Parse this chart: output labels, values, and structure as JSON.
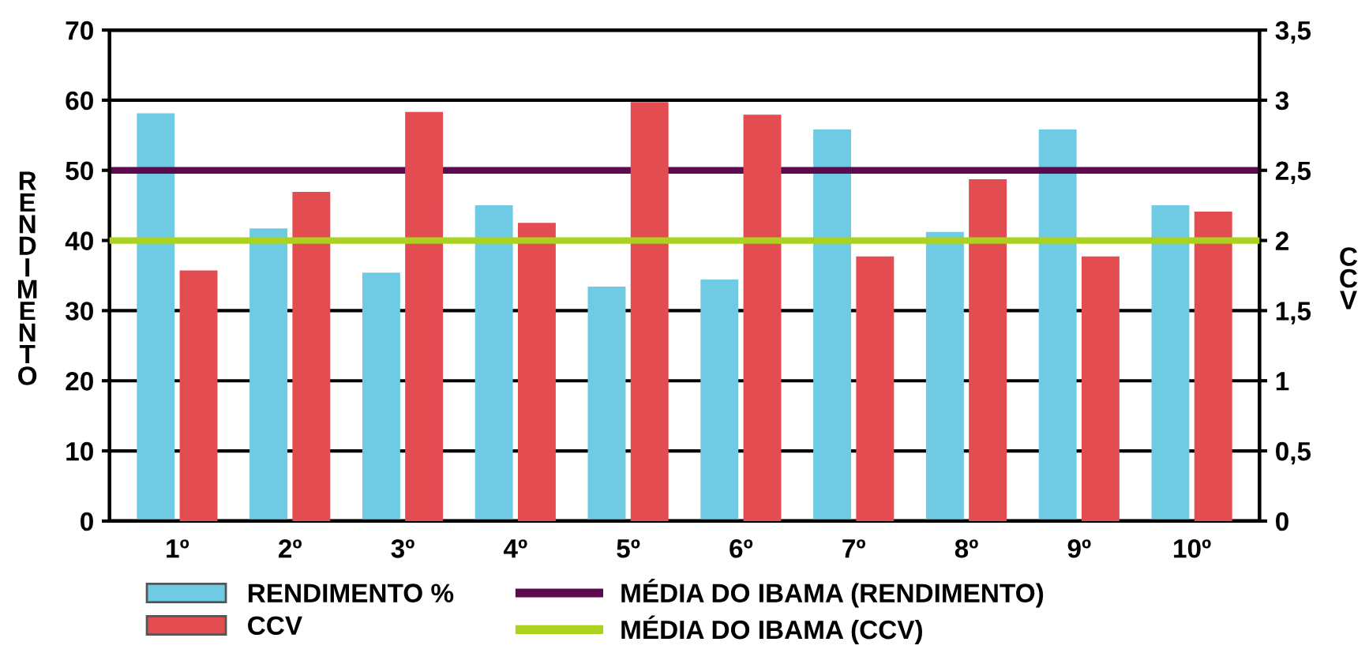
{
  "chart_data": {
    "type": "bar",
    "ylabel": "RENDIMENTO",
    "y2label": "CCV",
    "categories": [
      "1º",
      "2º",
      "3º",
      "4º",
      "5º",
      "6º",
      "7º",
      "8º",
      "9º",
      "10º"
    ],
    "series": [
      {
        "name": "RENDIMENTO %",
        "color": "#6ecbe3",
        "values": [
          58.0,
          41.6,
          35.3,
          44.9,
          33.3,
          34.3,
          55.7,
          41.1,
          55.7,
          44.9
        ]
      },
      {
        "name": "CCV",
        "color": "#e34d52",
        "axis": "y2",
        "values": [
          1.78,
          2.34,
          2.91,
          2.12,
          2.98,
          2.89,
          1.88,
          2.43,
          1.88,
          2.2
        ]
      }
    ],
    "ylim": [
      0,
      70
    ],
    "yticks": [
      0,
      10,
      20,
      30,
      40,
      50,
      60,
      70
    ],
    "y2lim": [
      0,
      3.5
    ],
    "y2ticks": [
      0,
      {
        "value": 0.5,
        "label": "0,5"
      },
      1,
      {
        "value": 1.5,
        "label": "1,5"
      },
      2,
      {
        "value": 2.5,
        "label": "2,5"
      },
      3,
      {
        "value": 3.5,
        "label": "3,5"
      }
    ],
    "ref_lines": [
      {
        "axis": "y",
        "value": 50,
        "label": "MÉDIA DO IBAMA (RENDIMENTO)",
        "color": "#5c0a4e"
      },
      {
        "axis": "y2",
        "value": 2,
        "label": "MÉDIA DO IBAMA (CCV)",
        "color": "#aad21e"
      }
    ],
    "grid": "y",
    "legend": "bottom"
  }
}
